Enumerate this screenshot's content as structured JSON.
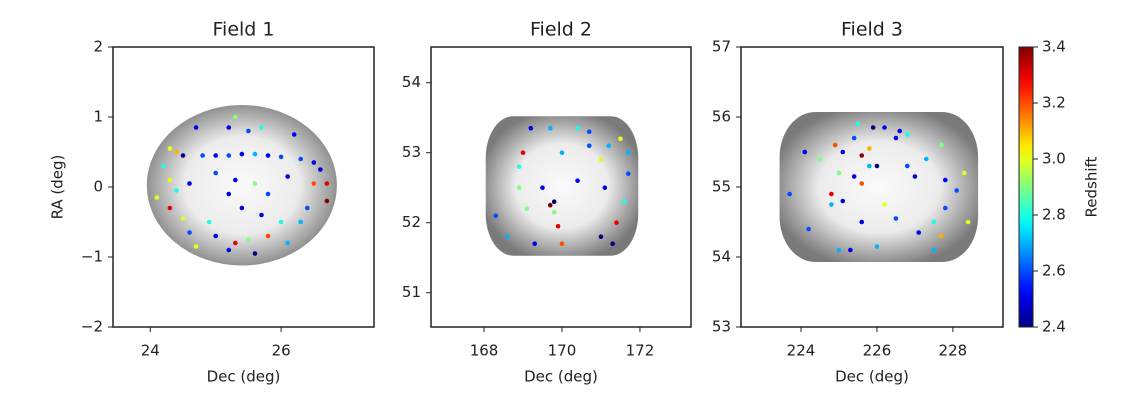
{
  "chart_data": [
    {
      "type": "scatter",
      "title": "Field 1",
      "xlabel": "Dec (deg)",
      "ylabel": "RA (deg)",
      "cmap": "jet",
      "xlim": [
        23.43,
        27.42
      ],
      "ylim": [
        -2,
        2
      ],
      "xticks": [
        24,
        26
      ],
      "yticks": [
        {
          "value": -2,
          "label": "−2"
        },
        {
          "value": -1,
          "label": "−1"
        },
        0,
        1,
        2
      ],
      "x": [
        25.3,
        25.2,
        24.7,
        25.5,
        25.7,
        26.2,
        24.3,
        24.4,
        24.5,
        24.8,
        25.0,
        25.2,
        25.4,
        25.6,
        25.8,
        26.0,
        26.3,
        26.5,
        26.6,
        24.2,
        24.3,
        24.6,
        25.0,
        25.3,
        25.6,
        26.1,
        26.5,
        26.7,
        24.1,
        24.4,
        25.2,
        25.8,
        26.4,
        26.7,
        24.3,
        24.5,
        24.9,
        25.4,
        25.7,
        26.0,
        26.3,
        24.6,
        25.0,
        25.5,
        25.8,
        26.1,
        24.7,
        25.2,
        25.6,
        25.3
      ],
      "y": [
        1.0,
        0.85,
        0.85,
        0.8,
        0.85,
        0.75,
        0.55,
        0.5,
        0.45,
        0.45,
        0.45,
        0.45,
        0.47,
        0.47,
        0.45,
        0.43,
        0.4,
        0.35,
        0.25,
        0.3,
        0.1,
        0.05,
        0.2,
        0.1,
        0.05,
        0.15,
        0.05,
        0.05,
        -0.15,
        -0.05,
        -0.1,
        -0.1,
        -0.3,
        -0.2,
        -0.3,
        -0.45,
        -0.5,
        -0.3,
        -0.4,
        -0.5,
        -0.5,
        -0.65,
        -0.7,
        -0.75,
        -0.7,
        -0.8,
        -0.85,
        -0.9,
        -0.95,
        -0.8
      ],
      "z": [
        2.9,
        2.5,
        2.5,
        2.6,
        2.8,
        2.5,
        3.0,
        3.1,
        2.4,
        2.6,
        2.5,
        2.6,
        2.5,
        2.7,
        2.5,
        2.6,
        2.6,
        2.5,
        2.5,
        2.8,
        3.0,
        2.5,
        2.6,
        2.5,
        2.9,
        2.5,
        3.2,
        3.3,
        3.0,
        2.8,
        2.5,
        2.6,
        2.6,
        3.4,
        3.3,
        3.0,
        2.8,
        2.5,
        2.5,
        2.8,
        2.7,
        2.6,
        2.5,
        2.9,
        3.2,
        2.7,
        3.0,
        2.5,
        2.4,
        3.3
      ]
    },
    {
      "type": "scatter",
      "title": "Field 2",
      "xlabel": "Dec (deg)",
      "cmap": "jet",
      "xlim": [
        166.64,
        173.31
      ],
      "ylim": [
        50.51,
        54.51
      ],
      "xticks": [
        168,
        170,
        172
      ],
      "yticks": [
        51,
        52,
        53,
        54
      ],
      "x": [
        169.2,
        169.7,
        170.4,
        170.7,
        171.5,
        171.7,
        171.2,
        170.7,
        169.0,
        168.9,
        170.0,
        171.0,
        171.7,
        168.9,
        169.5,
        170.4,
        171.1,
        171.6,
        168.3,
        169.7,
        169.8,
        169.8,
        171.4,
        171.0,
        169.9,
        170.0,
        168.6,
        169.3,
        171.3,
        169.1
      ],
      "y": [
        53.35,
        53.35,
        53.35,
        53.3,
        53.2,
        53.0,
        53.1,
        53.1,
        53.0,
        52.8,
        53.0,
        52.9,
        52.7,
        52.5,
        52.5,
        52.6,
        52.5,
        52.3,
        52.1,
        52.25,
        52.3,
        52.15,
        52.0,
        51.8,
        51.95,
        51.7,
        51.8,
        51.7,
        51.7,
        52.2
      ],
      "z": [
        2.5,
        2.7,
        2.8,
        2.6,
        3.0,
        2.7,
        2.7,
        2.6,
        3.3,
        2.8,
        2.7,
        3.0,
        2.6,
        2.9,
        2.5,
        2.5,
        2.5,
        2.8,
        2.6,
        3.4,
        2.4,
        2.9,
        3.3,
        2.4,
        3.3,
        3.2,
        2.7,
        2.5,
        2.4,
        2.9
      ]
    },
    {
      "type": "scatter",
      "title": "Field 3",
      "xlabel": "Dec (deg)",
      "cmap": "jet",
      "xlim": [
        222.42,
        229.32
      ],
      "ylim": [
        53,
        57
      ],
      "xticks": [
        224,
        226,
        228
      ],
      "yticks": [
        53,
        54,
        55,
        56,
        57
      ],
      "x": [
        225.5,
        225.9,
        226.2,
        226.6,
        226.8,
        225.4,
        226.5,
        224.9,
        225.1,
        225.8,
        225.6,
        227.7,
        224.1,
        224.5,
        225.8,
        227.3,
        226.8,
        226.0,
        227.0,
        225.0,
        225.4,
        225.6,
        228.3,
        227.8,
        224.8,
        223.7,
        225.1,
        226.2,
        227.8,
        228.1,
        224.8,
        226.5,
        227.5,
        225.6,
        228.4,
        224.2,
        227.1,
        227.7,
        225.0,
        225.3,
        226.0,
        227.5
      ],
      "y": [
        55.9,
        55.85,
        55.85,
        55.8,
        55.75,
        55.7,
        55.7,
        55.6,
        55.5,
        55.55,
        55.45,
        55.6,
        55.5,
        55.4,
        55.3,
        55.4,
        55.3,
        55.3,
        55.15,
        55.2,
        55.15,
        55.05,
        55.2,
        55.1,
        54.9,
        54.9,
        54.8,
        54.75,
        54.7,
        54.95,
        54.75,
        54.55,
        54.5,
        54.5,
        54.5,
        54.4,
        54.35,
        54.3,
        54.1,
        54.1,
        54.15,
        54.1
      ],
      "z": [
        2.8,
        2.4,
        2.5,
        2.5,
        2.8,
        2.6,
        2.5,
        3.2,
        2.5,
        3.1,
        3.4,
        2.9,
        2.5,
        2.9,
        2.7,
        2.7,
        2.6,
        2.4,
        2.5,
        2.9,
        2.5,
        3.2,
        3.0,
        2.5,
        3.3,
        2.6,
        2.5,
        3.0,
        2.6,
        2.6,
        2.7,
        2.6,
        2.8,
        2.5,
        3.0,
        2.6,
        2.5,
        3.1,
        2.7,
        2.5,
        2.7,
        2.7
      ],
      "colorbar": {
        "label": "Redshift",
        "lim": [
          2.4,
          3.4
        ],
        "ticks": [
          2.4,
          2.6,
          2.8,
          {
            "value": 3,
            "label": "3.0"
          },
          3.2,
          3.4
        ]
      }
    }
  ]
}
